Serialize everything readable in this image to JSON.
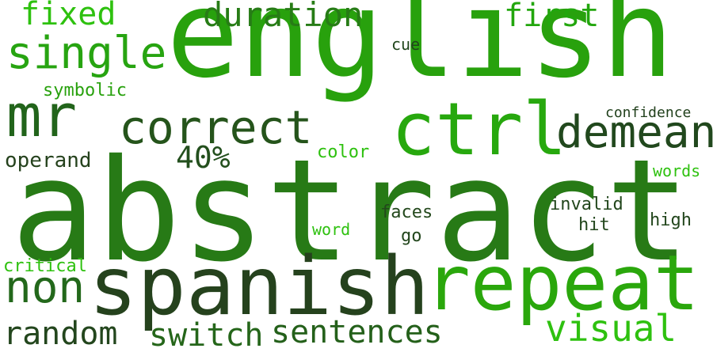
{
  "word_cloud": {
    "background_color": "#ffffff",
    "words": [
      {
        "key": "abstract",
        "text": "abstract",
        "color": "#277a16"
      },
      {
        "key": "english",
        "text": "english",
        "color": "#28a10d"
      },
      {
        "key": "spanish",
        "text": "spanish",
        "color": "#25421d"
      },
      {
        "key": "repeat",
        "text": "repeat",
        "color": "#2aa70c"
      },
      {
        "key": "ctrl",
        "text": "ctrl",
        "color": "#27a80e"
      },
      {
        "key": "mr",
        "text": "mr",
        "color": "#22641b"
      },
      {
        "key": "correct",
        "text": "correct",
        "color": "#25541b"
      },
      {
        "key": "single",
        "text": "single",
        "color": "#27a411"
      },
      {
        "key": "demean",
        "text": "demean",
        "color": "#21481d"
      },
      {
        "key": "non",
        "text": "non",
        "color": "#23681b"
      },
      {
        "key": "duration",
        "text": "duration",
        "color": "#277c16"
      },
      {
        "key": "visual",
        "text": "visual",
        "color": "#2ec10f"
      },
      {
        "key": "random",
        "text": "random",
        "color": "#23461d"
      },
      {
        "key": "switch",
        "text": "switch",
        "color": "#25661a"
      },
      {
        "key": "sentences",
        "text": "sentences",
        "color": "#24601a"
      },
      {
        "key": "first",
        "text": "first",
        "color": "#22a60d"
      },
      {
        "key": "fixed",
        "text": "fixed",
        "color": "#2ec10f"
      },
      {
        "key": "40",
        "text": "40%",
        "color": "#234f1d"
      },
      {
        "key": "operand",
        "text": "operand",
        "color": "#25421d"
      },
      {
        "key": "symbolic",
        "text": "symbolic",
        "color": "#28a10d"
      },
      {
        "key": "critical",
        "text": "critical",
        "color": "#2ec10f"
      },
      {
        "key": "color",
        "text": "color",
        "color": "#2ec10f"
      },
      {
        "key": "word",
        "text": "word",
        "color": "#2ec10f"
      },
      {
        "key": "faces",
        "text": "faces",
        "color": "#23481c"
      },
      {
        "key": "go",
        "text": "go",
        "color": "#22461c"
      },
      {
        "key": "cue",
        "text": "cue",
        "color": "#21461c"
      },
      {
        "key": "confidence",
        "text": "confidence",
        "color": "#21401c"
      },
      {
        "key": "words",
        "text": "words",
        "color": "#2ec10f"
      },
      {
        "key": "invalid",
        "text": "invalid",
        "color": "#22461c"
      },
      {
        "key": "hit",
        "text": "hit",
        "color": "#22461c"
      },
      {
        "key": "high",
        "text": "high",
        "color": "#22461c"
      }
    ]
  }
}
